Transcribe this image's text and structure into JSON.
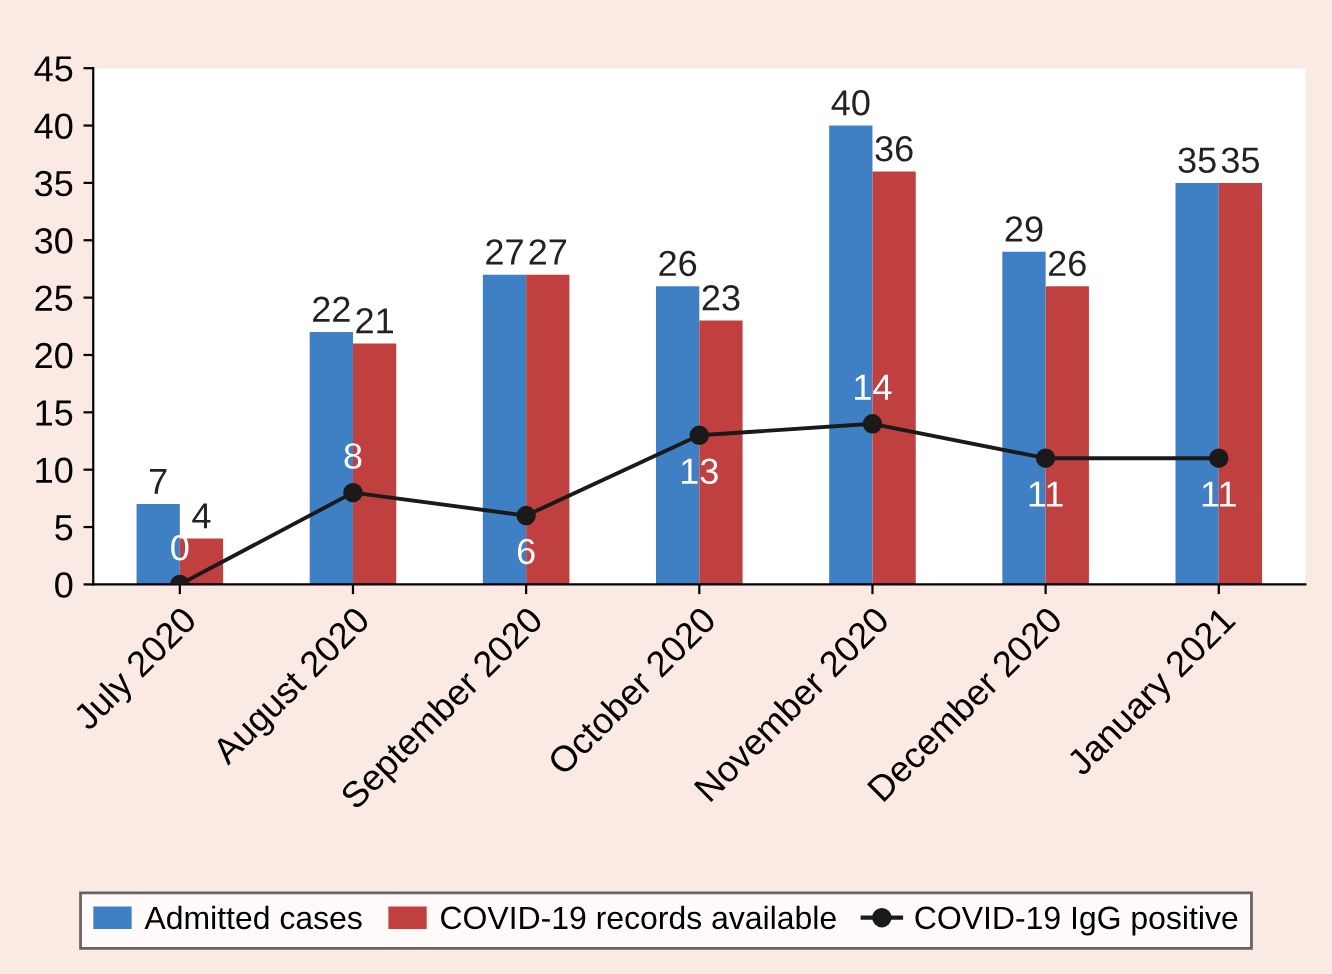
{
  "chart_data": {
    "type": "bar",
    "categories": [
      "July 2020",
      "August 2020",
      "September 2020",
      "October 2020",
      "November 2020",
      "December 2020",
      "January 2021"
    ],
    "series": [
      {
        "name": "Admitted cases",
        "color": "#3f7fc4",
        "values": [
          7,
          22,
          27,
          26,
          40,
          29,
          35
        ]
      },
      {
        "name": "COVID-19 records available",
        "color": "#c0403f",
        "values": [
          4,
          21,
          27,
          23,
          36,
          26,
          35
        ]
      },
      {
        "name": "COVID-19 IgG positive",
        "type": "line",
        "color": "#1a1a1a",
        "values": [
          0,
          8,
          6,
          13,
          14,
          11,
          11
        ]
      }
    ],
    "ylim": [
      0,
      45
    ],
    "yticks": [
      0,
      5,
      10,
      15,
      20,
      25,
      30,
      35,
      40,
      45
    ],
    "grid": false,
    "legend": "bottom",
    "marker": "circle",
    "line_style": "solid",
    "data_labels": true
  }
}
